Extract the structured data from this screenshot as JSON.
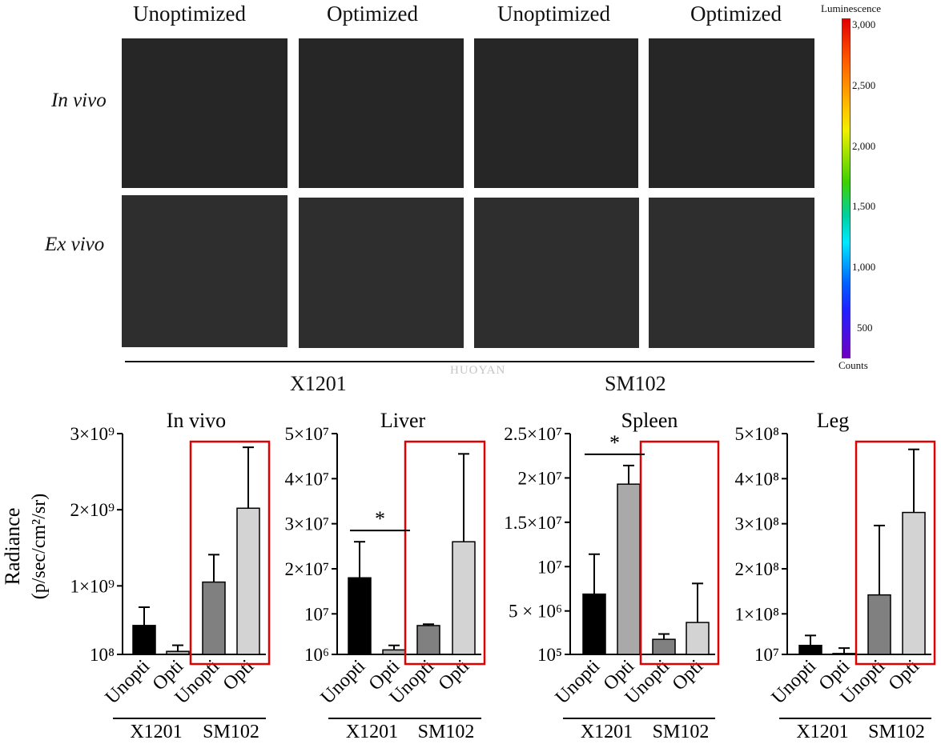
{
  "figure": {
    "column_titles": [
      "Unoptimized",
      "Optimized",
      "Unoptimized",
      "Optimized"
    ],
    "row_labels": [
      "In vivo",
      "Ex vivo"
    ],
    "group_labels": [
      "X1201",
      "SM102"
    ],
    "watermark": "HUOYAN",
    "colorbar": {
      "title": "Luminescence",
      "ticks": [
        "3,000",
        "2,500",
        "2,000",
        "1,500",
        "1,000",
        "500"
      ],
      "unit_label": "Counts",
      "colors": [
        "#ff0000",
        "#ff7f00",
        "#ffff00",
        "#00c000",
        "#00ffff",
        "#0040ff",
        "#7000c0"
      ]
    }
  },
  "y_axis_label": [
    "Radiance",
    "(p/sec/cm²/sr)"
  ],
  "chart_data": [
    {
      "type": "bar",
      "title": "In vivo",
      "categories": [
        "Unopti",
        "Opti",
        "Unopti",
        "Opti"
      ],
      "groups": [
        "X1201",
        "X1201",
        "SM102",
        "SM102"
      ],
      "values": [
        480000000,
        140000000,
        1050000000,
        2020000000
      ],
      "errors": [
        240000000,
        80000000,
        360000000,
        800000000
      ],
      "bar_colors": [
        "#000000",
        "#a9a9a9",
        "#808080",
        "#d3d3d3"
      ],
      "ylim": [
        100000000,
        3000000000
      ],
      "yticks": [
        {
          "value": 100000000,
          "label": "10⁸"
        },
        {
          "value": 1000000000,
          "label": "1×10⁹"
        },
        {
          "value": 2000000000,
          "label": "2×10⁹"
        },
        {
          "value": 3000000000,
          "label": "3×10⁹"
        }
      ],
      "significance": [],
      "highlight": "SM102"
    },
    {
      "type": "bar",
      "title": "Liver",
      "categories": [
        "Unopti",
        "Opti",
        "Unopti",
        "Opti"
      ],
      "groups": [
        "X1201",
        "X1201",
        "SM102",
        "SM102"
      ],
      "values": [
        18000000,
        2000000,
        7400000,
        26000000
      ],
      "errors": [
        8000000,
        1000000,
        300000,
        19500000
      ],
      "bar_colors": [
        "#000000",
        "#a9a9a9",
        "#808080",
        "#d3d3d3"
      ],
      "ylim": [
        1000000,
        50000000
      ],
      "yticks": [
        {
          "value": 1000000,
          "label": "10⁶"
        },
        {
          "value": 10000000,
          "label": "10⁷"
        },
        {
          "value": 20000000,
          "label": "2×10⁷"
        },
        {
          "value": 30000000,
          "label": "3×10⁷"
        },
        {
          "value": 40000000,
          "label": "4×10⁷"
        },
        {
          "value": 50000000,
          "label": "5×10⁷"
        }
      ],
      "significance": [
        {
          "from": 0,
          "to": 1,
          "label": "*"
        }
      ],
      "highlight": "SM102"
    },
    {
      "type": "bar",
      "title": "Spleen",
      "categories": [
        "Unopti",
        "Opti",
        "Unopti",
        "Opti"
      ],
      "groups": [
        "X1201",
        "X1201",
        "SM102",
        "SM102"
      ],
      "values": [
        6900000,
        19300000,
        1800000,
        3700000
      ],
      "errors": [
        4500000,
        2100000,
        600000,
        4400000
      ],
      "bar_colors": [
        "#000000",
        "#a9a9a9",
        "#808080",
        "#d3d3d3"
      ],
      "ylim": [
        100000,
        25000000
      ],
      "yticks": [
        {
          "value": 100000,
          "label": "10⁵"
        },
        {
          "value": 5000000,
          "label": "5 × 10⁶"
        },
        {
          "value": 10000000,
          "label": "10⁷"
        },
        {
          "value": 15000000,
          "label": "1.5×10⁷"
        },
        {
          "value": 20000000,
          "label": "2×10⁷"
        },
        {
          "value": 25000000,
          "label": "2.5×10⁷"
        }
      ],
      "significance": [
        {
          "from": 0,
          "to": 1,
          "label": "*"
        }
      ],
      "highlight": "SM102"
    },
    {
      "type": "bar",
      "title": "Leg",
      "categories": [
        "Unopti",
        "Opti",
        "Unopti",
        "Opti"
      ],
      "groups": [
        "X1201",
        "X1201",
        "SM102",
        "SM102"
      ],
      "values": [
        30000000,
        12000000,
        142000000,
        325000000
      ],
      "errors": [
        22000000,
        12000000,
        154000000,
        140000000
      ],
      "bar_colors": [
        "#000000",
        "#a9a9a9",
        "#808080",
        "#d3d3d3"
      ],
      "ylim": [
        10000000,
        500000000
      ],
      "yticks": [
        {
          "value": 10000000,
          "label": "10⁷"
        },
        {
          "value": 100000000,
          "label": "1×10⁸"
        },
        {
          "value": 200000000,
          "label": "2×10⁸"
        },
        {
          "value": 300000000,
          "label": "3×10⁸"
        },
        {
          "value": 400000000,
          "label": "4×10⁸"
        },
        {
          "value": 500000000,
          "label": "5×10⁸"
        }
      ],
      "significance": [],
      "highlight": "SM102"
    }
  ]
}
